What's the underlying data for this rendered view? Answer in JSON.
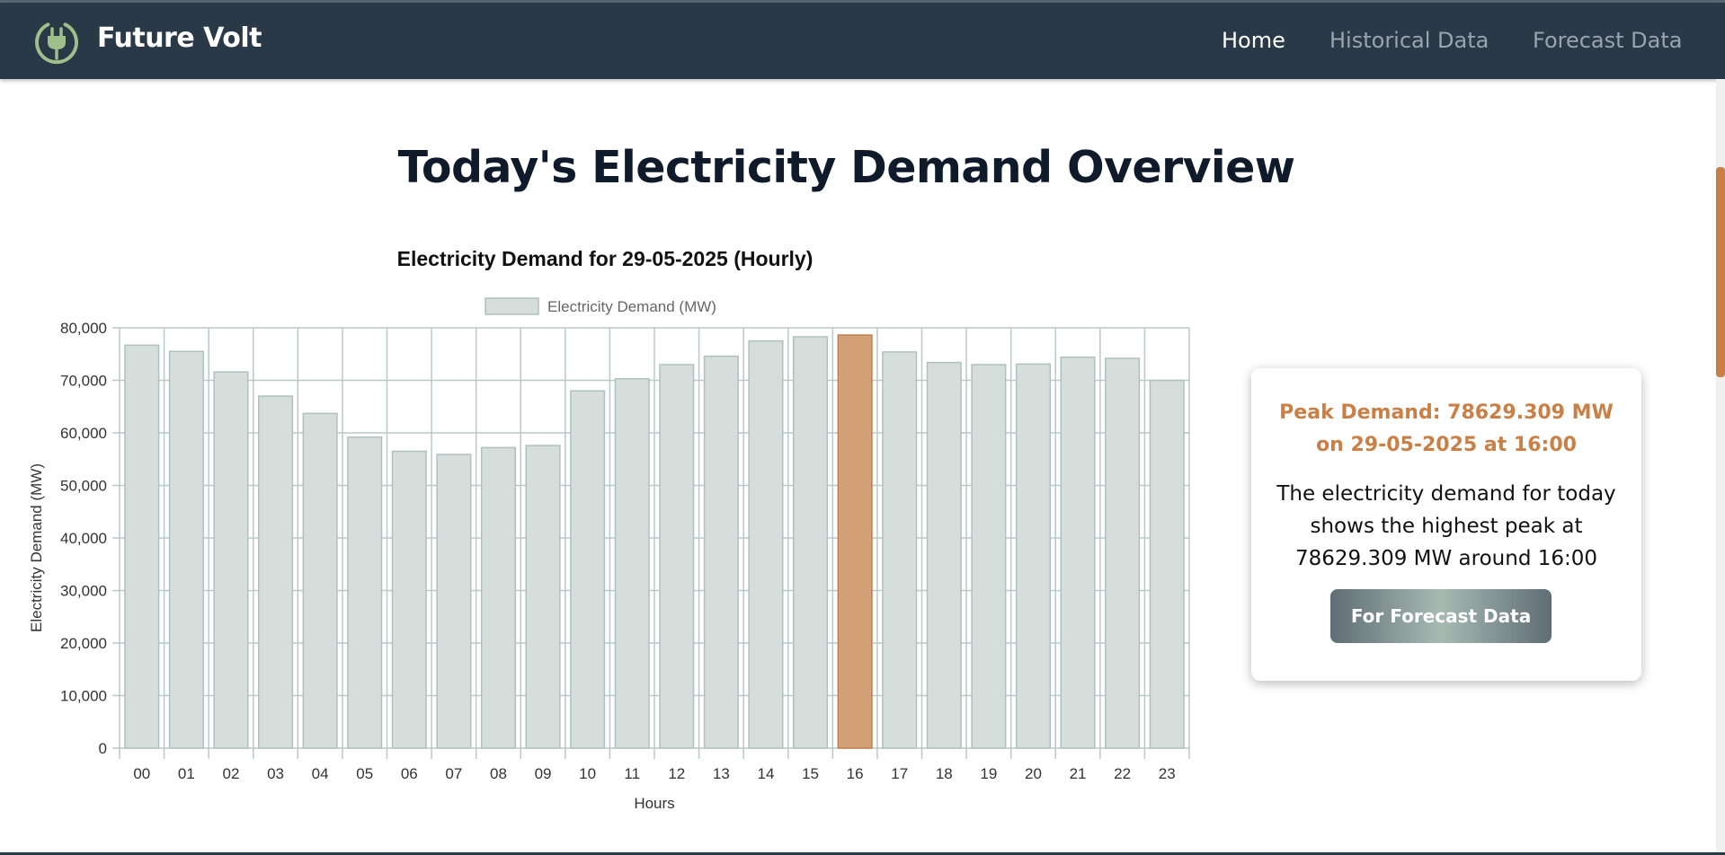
{
  "navbar": {
    "brand": "Future Volt",
    "links": [
      {
        "label": "Home",
        "active": true
      },
      {
        "label": "Historical Data",
        "active": false
      },
      {
        "label": "Forecast Data",
        "active": false
      }
    ]
  },
  "main": {
    "title": "Today's Electricity Demand Overview"
  },
  "chart_data": {
    "type": "bar",
    "title": "Electricity Demand for 29-05-2025 (Hourly)",
    "xlabel": "Hours",
    "ylabel": "Electricity Demand (MW)",
    "ylim": [
      0,
      80000
    ],
    "yticks": [
      "0",
      "10,000",
      "20,000",
      "30,000",
      "40,000",
      "50,000",
      "60,000",
      "70,000",
      "80,000"
    ],
    "categories": [
      "00",
      "01",
      "02",
      "03",
      "04",
      "05",
      "06",
      "07",
      "08",
      "09",
      "10",
      "11",
      "12",
      "13",
      "14",
      "15",
      "16",
      "17",
      "18",
      "19",
      "20",
      "21",
      "22",
      "23"
    ],
    "series": [
      {
        "name": "Electricity Demand (MW)",
        "values": [
          76700,
          75500,
          71600,
          67000,
          63700,
          59200,
          56500,
          55900,
          57200,
          57600,
          68000,
          70300,
          73000,
          74600,
          77500,
          78300,
          78629.309,
          75400,
          73400,
          73000,
          73100,
          74400,
          74200,
          70000
        ]
      }
    ],
    "highlight_category": "16",
    "colors": {
      "bar_fill": "#d6dedb",
      "bar_border": "#aec2bd",
      "highlight_fill": "#d4a078",
      "highlight_border": "#c2804c",
      "grid": "#b9cac6"
    },
    "legend_position": "top",
    "grid": true
  },
  "info_card": {
    "peak_text": "Peak Demand: 78629.309 MW on 29-05-2025 at 16:00",
    "description": "The electricity demand for today shows the highest peak at 78629.309 MW around 16:00",
    "button_label": "For Forecast Data"
  },
  "colors": {
    "navbar_bg": "#2a3947",
    "accent": "#c98047",
    "logo_green": "#9fbf8a"
  },
  "icons": {
    "logo": "plug-icon"
  }
}
